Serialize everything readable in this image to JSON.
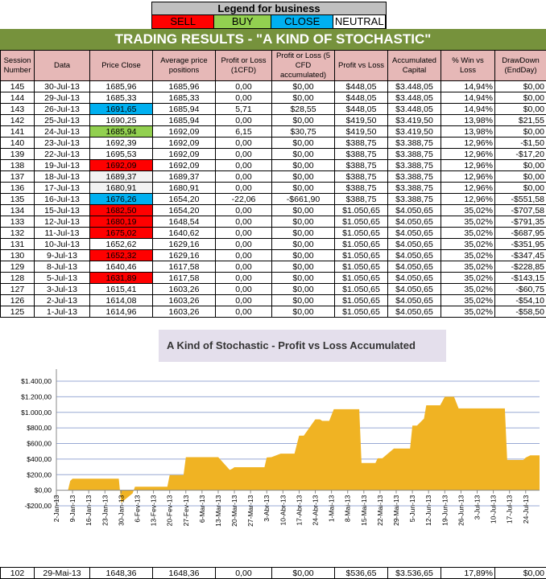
{
  "legend": {
    "title": "Legend for business",
    "items": [
      {
        "label": "SELL",
        "color": "#ff0000"
      },
      {
        "label": "BUY",
        "color": "#92d050"
      },
      {
        "label": "CLOSE",
        "color": "#00b0f0"
      },
      {
        "label": "NEUTRAL",
        "color": "#ffffff"
      }
    ]
  },
  "title": "TRADING RESULTS - \"A KIND OF STOCHASTIC\"",
  "columns": [
    "Session Number",
    "Data",
    "Price Close",
    "Average price positions",
    "Profit or Loss (1CFD)",
    "Profit or Loss (5 CFD accumulated)",
    "Profit vs Loss",
    "Accumulated Capital",
    "% Win vs Loss",
    "DrawDown (EndDay)"
  ],
  "rows": [
    {
      "cells": [
        "145",
        "30-Jul-13",
        "1685,96",
        "1685,96",
        "0,00",
        "$0,00",
        "$448,05",
        "$3.448,05",
        "14,94%",
        "$0,00"
      ],
      "signal": "neutral"
    },
    {
      "cells": [
        "144",
        "29-Jul-13",
        "1685,33",
        "1685,33",
        "0,00",
        "$0,00",
        "$448,05",
        "$3.448,05",
        "14,94%",
        "$0,00"
      ],
      "signal": "neutral"
    },
    {
      "cells": [
        "143",
        "26-Jul-13",
        "1691,65",
        "1685,94",
        "5,71",
        "$28,55",
        "$448,05",
        "$3.448,05",
        "14,94%",
        "$0,00"
      ],
      "signal": "close"
    },
    {
      "cells": [
        "142",
        "25-Jul-13",
        "1690,25",
        "1685,94",
        "0,00",
        "$0,00",
        "$419,50",
        "$3.419,50",
        "13,98%",
        "$21,55"
      ],
      "signal": "neutral"
    },
    {
      "cells": [
        "141",
        "24-Jul-13",
        "1685,94",
        "1692,09",
        "6,15",
        "$30,75",
        "$419,50",
        "$3.419,50",
        "13,98%",
        "$0,00"
      ],
      "signal": "buy"
    },
    {
      "cells": [
        "140",
        "23-Jul-13",
        "1692,39",
        "1692,09",
        "0,00",
        "$0,00",
        "$388,75",
        "$3.388,75",
        "12,96%",
        "-$1,50"
      ],
      "signal": "neutral"
    },
    {
      "cells": [
        "139",
        "22-Jul-13",
        "1695,53",
        "1692,09",
        "0,00",
        "$0,00",
        "$388,75",
        "$3.388,75",
        "12,96%",
        "-$17,20"
      ],
      "signal": "neutral"
    },
    {
      "cells": [
        "138",
        "19-Jul-13",
        "1692,09",
        "1692,09",
        "0,00",
        "$0,00",
        "$388,75",
        "$3.388,75",
        "12,96%",
        "$0,00"
      ],
      "signal": "sell"
    },
    {
      "cells": [
        "137",
        "18-Jul-13",
        "1689,37",
        "1689,37",
        "0,00",
        "$0,00",
        "$388,75",
        "$3.388,75",
        "12,96%",
        "$0,00"
      ],
      "signal": "gray"
    },
    {
      "cells": [
        "136",
        "17-Jul-13",
        "1680,91",
        "1680,91",
        "0,00",
        "$0,00",
        "$388,75",
        "$3.388,75",
        "12,96%",
        "$0,00"
      ],
      "signal": "gray"
    },
    {
      "cells": [
        "135",
        "16-Jul-13",
        "1676,26",
        "1654,20",
        "-22,06",
        "-$661,90",
        "$388,75",
        "$3.388,75",
        "12,96%",
        "-$551,58"
      ],
      "signal": "close"
    },
    {
      "cells": [
        "134",
        "15-Jul-13",
        "1682,50",
        "1654,20",
        "0,00",
        "$0,00",
        "$1.050,65",
        "$4.050,65",
        "35,02%",
        "-$707,58"
      ],
      "signal": "sell"
    },
    {
      "cells": [
        "133",
        "12-Jul-13",
        "1680,19",
        "1648,54",
        "0,00",
        "$0,00",
        "$1.050,65",
        "$4.050,65",
        "35,02%",
        "-$791,35"
      ],
      "signal": "sell"
    },
    {
      "cells": [
        "132",
        "11-Jul-13",
        "1675,02",
        "1640,62",
        "0,00",
        "$0,00",
        "$1.050,65",
        "$4.050,65",
        "35,02%",
        "-$687,95"
      ],
      "signal": "sell"
    },
    {
      "cells": [
        "131",
        "10-Jul-13",
        "1652,62",
        "1629,16",
        "0,00",
        "$0,00",
        "$1.050,65",
        "$4.050,65",
        "35,02%",
        "-$351,95"
      ],
      "signal": "neutral"
    },
    {
      "cells": [
        "130",
        "9-Jul-13",
        "1652,32",
        "1629,16",
        "0,00",
        "$0,00",
        "$1.050,65",
        "$4.050,65",
        "35,02%",
        "-$347,45"
      ],
      "signal": "sell"
    },
    {
      "cells": [
        "129",
        "8-Jul-13",
        "1640,46",
        "1617,58",
        "0,00",
        "$0,00",
        "$1.050,65",
        "$4.050,65",
        "35,02%",
        "-$228,85"
      ],
      "signal": "neutral"
    },
    {
      "cells": [
        "128",
        "5-Jul-13",
        "1631,89",
        "1617,58",
        "0,00",
        "$0,00",
        "$1.050,65",
        "$4.050,65",
        "35,02%",
        "-$143,15"
      ],
      "signal": "sell"
    },
    {
      "cells": [
        "127",
        "3-Jul-13",
        "1615,41",
        "1603,26",
        "0,00",
        "$0,00",
        "$1.050,65",
        "$4.050,65",
        "35,02%",
        "-$60,75"
      ],
      "signal": "neutral"
    },
    {
      "cells": [
        "126",
        "2-Jul-13",
        "1614,08",
        "1603,26",
        "0,00",
        "$0,00",
        "$1.050,65",
        "$4.050,65",
        "35,02%",
        "-$54,10"
      ],
      "signal": "neutral"
    },
    {
      "cells": [
        "125",
        "1-Jul-13",
        "1614,96",
        "1603,26",
        "0,00",
        "$0,00",
        "$1.050,65",
        "$4.050,65",
        "35,02%",
        "-$58,50"
      ],
      "signal": "neutral"
    }
  ],
  "bottom_row": {
    "cells": [
      "102",
      "29-Mai-13",
      "1648,36",
      "1648,36",
      "0,00",
      "$0,00",
      "$536,65",
      "$3.536,65",
      "17,89%",
      "$0,00"
    ]
  },
  "signal_colors": {
    "sell": "#ff0000",
    "buy": "#92d050",
    "close": "#00b0f0",
    "gray": "#f2f2f2",
    "neutral": "#ffffff"
  },
  "chart_data": {
    "type": "area",
    "title": "A Kind of Stochastic - Profit vs Loss Accumulated",
    "color": "#f0b323",
    "ylim": [
      -200,
      1400
    ],
    "yticks": [
      "$1.400,00",
      "$1.200,00",
      "$1.000,00",
      "$800,00",
      "$600,00",
      "$400,00",
      "$200,00",
      "$0,00",
      "-$200,00"
    ],
    "ytick_values": [
      1400,
      1200,
      1000,
      800,
      600,
      400,
      200,
      0,
      -200
    ],
    "grid": true,
    "xlim": [
      "2013-01-02",
      "2013-07-30"
    ],
    "xticks": [
      "2-Jan-13",
      "9-Jan-13",
      "16-Jan-13",
      "23-Jan-13",
      "30-Jan-13",
      "6-Fev-13",
      "13-Fev-13",
      "20-Fev-13",
      "27-Fev-13",
      "6-Mar-13",
      "13-Mar-13",
      "20-Mar-13",
      "27-Mar-13",
      "3-Abr-13",
      "10-Abr-13",
      "17-Abr-13",
      "24-Abr-13",
      "1-Mai-13",
      "8-Mai-13",
      "15-Mai-13",
      "22-Mai-13",
      "29-Mai-13",
      "5-Jun-13",
      "12-Jun-13",
      "19-Jun-13",
      "26-Jun-13",
      "3-Jul-13",
      "10-Jul-13",
      "17-Jul-13",
      "24-Jul-13"
    ],
    "x": [
      "2013-01-07",
      "2013-01-08",
      "2013-01-09",
      "2013-01-29",
      "2013-01-30",
      "2013-02-04",
      "2013-02-05",
      "2013-02-19",
      "2013-02-20",
      "2013-02-26",
      "2013-02-27",
      "2013-03-13",
      "2013-03-18",
      "2013-03-19",
      "2013-03-20",
      "2013-04-02",
      "2013-04-03",
      "2013-04-05",
      "2013-04-09",
      "2013-04-15",
      "2013-04-17",
      "2013-04-19",
      "2013-04-24",
      "2013-04-26",
      "2013-04-27",
      "2013-04-30",
      "2013-05-02",
      "2013-05-13",
      "2013-05-14",
      "2013-05-20",
      "2013-05-21",
      "2013-05-23",
      "2013-05-28",
      "2013-06-04",
      "2013-06-05",
      "2013-06-07",
      "2013-06-10",
      "2013-06-11",
      "2013-06-17",
      "2013-06-19",
      "2013-06-23",
      "2013-06-25",
      "2013-07-15",
      "2013-07-16",
      "2013-07-23",
      "2013-07-24",
      "2013-07-26",
      "2013-07-30"
    ],
    "y": [
      0,
      120,
      148,
      148,
      -160,
      -40,
      45,
      45,
      195,
      195,
      425,
      425,
      260,
      275,
      295,
      295,
      420,
      425,
      470,
      470,
      700,
      700,
      910,
      910,
      890,
      890,
      1040,
      1040,
      350,
      350,
      410,
      410,
      535,
      535,
      830,
      830,
      920,
      1090,
      1090,
      1200,
      1200,
      1050,
      1050,
      388.75,
      388.75,
      419.5,
      448.05,
      448.05
    ]
  }
}
